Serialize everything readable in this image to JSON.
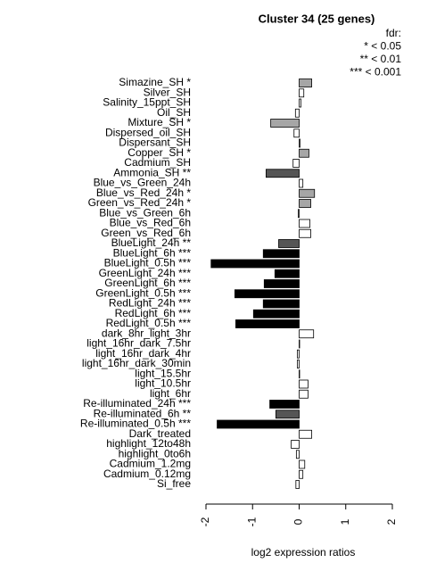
{
  "chart_data": {
    "type": "barh",
    "title": "Cluster 34 (25 genes)",
    "legend_text": [
      "fdr:",
      "* < 0.05",
      "** < 0.01",
      "*** < 0.001"
    ],
    "x_label": "log2 expression ratios",
    "categories": [
      "Simazine_SH *",
      "Silver_SH",
      "Salinity_15ppt_SH",
      "Oil_SH",
      "Mixture_SH *",
      "Dispersed_oil_SH",
      "Dispersant_SH",
      "Copper_SH *",
      "Cadmium_SH",
      "Ammonia_SH **",
      "Blue_vs_Green_24h",
      "Blue_vs_Red_24h *",
      "Green_vs_Red_24h *",
      "Blue_vs_Green_6h",
      "Blue_vs_Red_6h",
      "Green_vs_Red_6h",
      "BlueLight_24h **",
      "BlueLight_6h ***",
      "BlueLight_0.5h ***",
      "GreenLight_24h ***",
      "GreenLight_6h ***",
      "GreenLight_0.5h ***",
      "RedLight_24h ***",
      "RedLight_6h ***",
      "RedLight_0.5h ***",
      "dark_8hr_light_3hr",
      "light_16hr_dark_7.5hr",
      "light_16hr_dark_4hr",
      "light_16hr_dark_30min",
      "light_15.5hr",
      "light_10.5hr",
      "light_6hr",
      "Re-illuminated_24h ***",
      "Re-illuminated_6h **",
      "Re-illuminated_0.5h ***",
      "Dark_treated",
      "highlight_12to48h",
      "highlight_0to6h",
      "Cadmium_1.2mg",
      "Cadmium_0.12mg",
      "Si_free"
    ],
    "values": [
      0.27,
      0.1,
      0.04,
      -0.08,
      -0.61,
      -0.11,
      0.02,
      0.21,
      -0.13,
      -0.71,
      0.08,
      0.33,
      0.25,
      -0.02,
      0.23,
      0.25,
      -0.44,
      -0.77,
      -1.89,
      -0.52,
      -0.75,
      -1.38,
      -0.77,
      -0.98,
      -1.36,
      0.31,
      0.01,
      -0.04,
      -0.04,
      0.01,
      0.19,
      0.19,
      -0.63,
      -0.5,
      -1.76,
      0.27,
      -0.17,
      -0.06,
      0.12,
      0.08,
      -0.07
    ],
    "colors": [
      "#a6a6a6",
      "#ffffff",
      "#ffffff",
      "#ffffff",
      "#a6a6a6",
      "#ffffff",
      "#ffffff",
      "#a6a6a6",
      "#ffffff",
      "#555555",
      "#ffffff",
      "#a6a6a6",
      "#a6a6a6",
      "#ffffff",
      "#ffffff",
      "#ffffff",
      "#555555",
      "#000000",
      "#000000",
      "#000000",
      "#000000",
      "#000000",
      "#000000",
      "#000000",
      "#000000",
      "#ffffff",
      "#ffffff",
      "#ffffff",
      "#ffffff",
      "#ffffff",
      "#ffffff",
      "#ffffff",
      "#000000",
      "#555555",
      "#000000",
      "#ffffff",
      "#ffffff",
      "#ffffff",
      "#ffffff",
      "#ffffff",
      "#ffffff"
    ],
    "xlim": [
      -2,
      2
    ],
    "xticks": [
      -2,
      -1,
      0,
      1,
      2
    ]
  }
}
